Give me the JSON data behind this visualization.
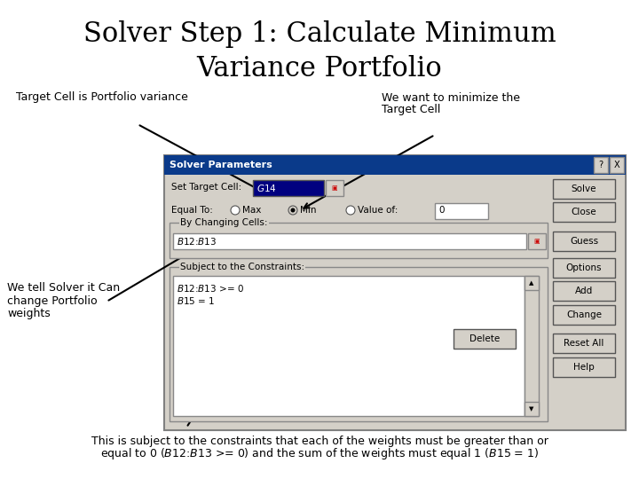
{
  "title_line1": "Solver Step 1: Calculate Minimum",
  "title_line2": "Variance Portfolio",
  "title_fontsize": 22,
  "title_font": "DejaVu Serif",
  "bg_color": "#ffffff",
  "label_target_cell": "Target Cell is Portfolio variance",
  "label_minimize_1": "We want to minimize the",
  "label_minimize_2": "Target Cell",
  "label_changing_1": "We tell Solver it Can",
  "label_changing_2": "change Portfolio",
  "label_changing_3": "weights",
  "label_bottom_1": "This is subject to the constraints that each of the weights must be greater than or",
  "label_bottom_2": "equal to 0 ($B$12:$B$13 >= 0) and the sum of the weights must equal 1 ($B$15 = 1)",
  "dialog_title": "Solver Parameters",
  "dialog_bg": "#d4d0c8",
  "dialog_header_bg": "#0a3a8a",
  "dialog_header_text_color": "#ffffff",
  "text_fontsize": 9,
  "dialog_fontsize": 7.5
}
